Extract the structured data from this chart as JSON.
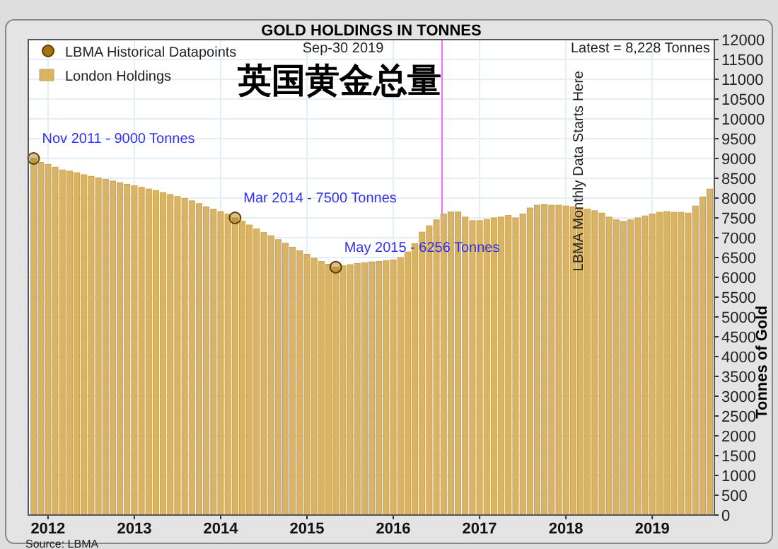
{
  "chart_data": {
    "type": "bar",
    "title": "GOLD HOLDINGS IN TONNES",
    "ylabel": "Tonnes of Gold",
    "annotations": [
      "Sep-30  2019",
      "Latest = 8,228 Tonnes",
      "英国黄金总量",
      "LBMA Monthly Data Starts Here",
      "Source: LBMA",
      {
        "text": "Nov 2011 - 9000 Tonnes",
        "x": "2011-11",
        "y": 9000
      },
      {
        "text": "Mar 2014 - 7500 Tonnes",
        "x": "2014-03",
        "y": 7500
      },
      {
        "text": "May 2015 - 6256 Tonnes",
        "x": "2015-05",
        "y": 6256
      }
    ],
    "series": [
      {
        "name": "London Holdings",
        "color": "#dab466",
        "x": [
          "2011-11",
          "2011-12",
          "2012-01",
          "2012-02",
          "2012-03",
          "2012-04",
          "2012-05",
          "2012-06",
          "2012-07",
          "2012-08",
          "2012-09",
          "2012-10",
          "2012-11",
          "2012-12",
          "2013-01",
          "2013-02",
          "2013-03",
          "2013-04",
          "2013-05",
          "2013-06",
          "2013-07",
          "2013-08",
          "2013-09",
          "2013-10",
          "2013-11",
          "2013-12",
          "2014-01",
          "2014-02",
          "2014-03",
          "2014-04",
          "2014-05",
          "2014-06",
          "2014-07",
          "2014-08",
          "2014-09",
          "2014-10",
          "2014-11",
          "2014-12",
          "2015-01",
          "2015-02",
          "2015-03",
          "2015-04",
          "2015-05",
          "2015-06",
          "2015-07",
          "2015-08",
          "2015-09",
          "2015-10",
          "2015-11",
          "2015-12",
          "2016-01",
          "2016-02",
          "2016-03",
          "2016-04",
          "2016-05",
          "2016-06",
          "2016-07",
          "2016-08",
          "2016-09",
          "2016-10",
          "2016-11",
          "2016-12",
          "2017-01",
          "2017-02",
          "2017-03",
          "2017-04",
          "2017-05",
          "2017-06",
          "2017-07",
          "2017-08",
          "2017-09",
          "2017-10",
          "2017-11",
          "2017-12",
          "2018-01",
          "2018-02",
          "2018-03",
          "2018-04",
          "2018-05",
          "2018-06",
          "2018-07",
          "2018-08",
          "2018-09",
          "2018-10",
          "2018-11",
          "2018-12",
          "2019-01",
          "2019-02",
          "2019-03",
          "2019-04",
          "2019-05",
          "2019-06",
          "2019-07",
          "2019-08",
          "2019-09"
        ],
        "values": [
          9000,
          8900,
          8850,
          8780,
          8710,
          8680,
          8640,
          8590,
          8550,
          8510,
          8470,
          8430,
          8390,
          8350,
          8310,
          8270,
          8230,
          8190,
          8140,
          8090,
          8040,
          7990,
          7930,
          7860,
          7780,
          7720,
          7660,
          7600,
          7500,
          7420,
          7320,
          7220,
          7130,
          7050,
          6950,
          6860,
          6760,
          6670,
          6580,
          6480,
          6400,
          6330,
          6256,
          6290,
          6320,
          6350,
          6370,
          6390,
          6400,
          6420,
          6440,
          6500,
          6640,
          6850,
          7140,
          7300,
          7450,
          7600,
          7650,
          7650,
          7520,
          7430,
          7430,
          7460,
          7500,
          7520,
          7560,
          7500,
          7600,
          7750,
          7820,
          7840,
          7820,
          7820,
          7800,
          7780,
          7760,
          7720,
          7680,
          7620,
          7520,
          7450,
          7410,
          7450,
          7500,
          7550,
          7600,
          7640,
          7660,
          7640,
          7640,
          7620,
          7800,
          8030,
          8228
        ]
      },
      {
        "name": "LBMA Historical Datapoints",
        "type": "scatter",
        "color": "#a8730f",
        "marker": "circle",
        "x": [
          "2011-11",
          "2014-03",
          "2015-05"
        ],
        "values": [
          9000,
          7500,
          6256
        ]
      }
    ],
    "xlim": [
      "2011-10-09",
      "2019-09-20"
    ],
    "xticks": [
      {
        "value": "2012-01-01",
        "label": "2012"
      },
      {
        "value": "2013-01-01",
        "label": "2013"
      },
      {
        "value": "2014-01-01",
        "label": "2014"
      },
      {
        "value": "2015-01-01",
        "label": "2015"
      },
      {
        "value": "2016-01-01",
        "label": "2016"
      },
      {
        "value": "2017-01-01",
        "label": "2017"
      },
      {
        "value": "2018-01-01",
        "label": "2018"
      },
      {
        "value": "2019-01-01",
        "label": "2019"
      }
    ],
    "ylim": [
      0,
      12000
    ],
    "yticks": [
      0,
      500,
      1000,
      1500,
      2000,
      2500,
      3000,
      3500,
      4000,
      4500,
      5000,
      5500,
      6000,
      6500,
      7000,
      7500,
      8000,
      8500,
      9000,
      9500,
      10000,
      10500,
      11000,
      11500,
      12000
    ],
    "ref_lines": [
      {
        "axis": "x",
        "value": "2016-07-25",
        "color": "#ff66ff"
      }
    ],
    "grid": true,
    "legend": "top left"
  }
}
